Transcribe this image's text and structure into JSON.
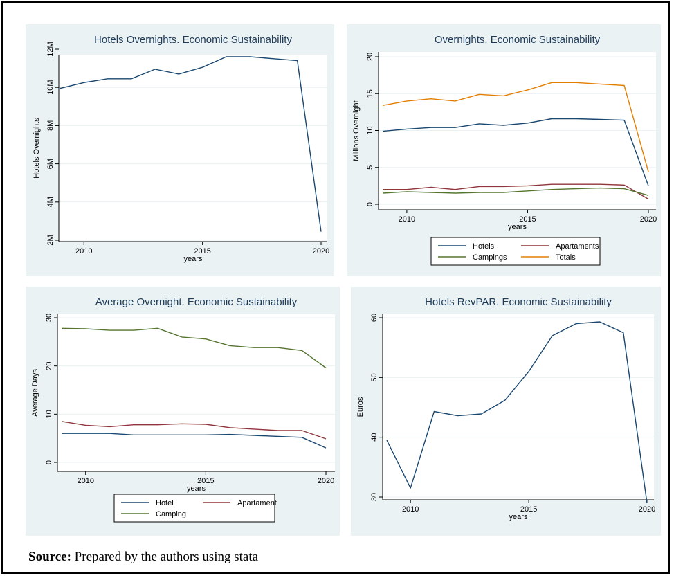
{
  "source": {
    "label": "Source:",
    "text": "Prepared by the authors using stata"
  },
  "chart_data": [
    {
      "id": "hotels-overnights",
      "type": "line",
      "title": "Hotels Overnights. Economic Sustainability",
      "xlabel": "years",
      "ylabel": "Hotels Overnights",
      "xlim": [
        2009,
        2020
      ],
      "ylim": [
        2000000,
        12000000
      ],
      "x_ticks": [
        2010,
        2015,
        2020
      ],
      "y_ticks": [
        {
          "v": 2000000,
          "label": "2M"
        },
        {
          "v": 4000000,
          "label": "4M"
        },
        {
          "v": 6000000,
          "label": "6M"
        },
        {
          "v": 8000000,
          "label": "8M"
        },
        {
          "v": 10000000,
          "label": "10M"
        },
        {
          "v": 12000000,
          "label": "12M"
        }
      ],
      "grid": true,
      "x": [
        2009,
        2010,
        2011,
        2012,
        2013,
        2014,
        2015,
        2016,
        2017,
        2018,
        2019,
        2020
      ],
      "series": [
        {
          "color": "#1a476f",
          "values": [
            9950000,
            10250000,
            10450000,
            10450000,
            10950000,
            10700000,
            11050000,
            11600000,
            11600000,
            11500000,
            11400000,
            2450000
          ]
        }
      ]
    },
    {
      "id": "overnights",
      "type": "line",
      "title": "Overnights. Economic Sustainability",
      "xlabel": "years",
      "ylabel": "Millions Overnight",
      "xlim": [
        2009,
        2020
      ],
      "ylim": [
        0,
        20
      ],
      "x_ticks": [
        2010,
        2015,
        2020
      ],
      "y_ticks": [
        {
          "v": 0,
          "label": "0"
        },
        {
          "v": 5,
          "label": "5"
        },
        {
          "v": 10,
          "label": "10"
        },
        {
          "v": 15,
          "label": "15"
        },
        {
          "v": 20,
          "label": "20"
        }
      ],
      "grid": true,
      "legend_position": "bottom",
      "x": [
        2009,
        2010,
        2011,
        2012,
        2013,
        2014,
        2015,
        2016,
        2017,
        2018,
        2019,
        2020
      ],
      "series": [
        {
          "name": "Hotels",
          "color": "#1a476f",
          "values": [
            9.9,
            10.2,
            10.4,
            10.4,
            10.9,
            10.7,
            11.0,
            11.6,
            11.6,
            11.5,
            11.4,
            2.5
          ]
        },
        {
          "name": "Apartaments",
          "color": "#90353b",
          "values": [
            2.0,
            2.0,
            2.3,
            2.0,
            2.4,
            2.4,
            2.5,
            2.7,
            2.7,
            2.7,
            2.6,
            0.7
          ]
        },
        {
          "name": "Campings",
          "color": "#55752f",
          "values": [
            1.5,
            1.7,
            1.6,
            1.5,
            1.6,
            1.6,
            1.8,
            2.0,
            2.1,
            2.2,
            2.1,
            1.2
          ]
        },
        {
          "name": "Totals",
          "color": "#e37e00",
          "values": [
            13.4,
            14.0,
            14.3,
            14.0,
            14.9,
            14.7,
            15.5,
            16.5,
            16.5,
            16.3,
            16.1,
            4.4
          ]
        }
      ]
    },
    {
      "id": "average-overnight",
      "type": "line",
      "title": "Average Overnight. Economic Sustainability",
      "xlabel": "years",
      "ylabel": "Average Days",
      "xlim": [
        2009,
        2020
      ],
      "ylim": [
        0,
        30
      ],
      "x_ticks": [
        2010,
        2015,
        2020
      ],
      "y_ticks": [
        {
          "v": 0,
          "label": "0"
        },
        {
          "v": 10,
          "label": "10"
        },
        {
          "v": 20,
          "label": "20"
        },
        {
          "v": 30,
          "label": "30"
        }
      ],
      "grid": true,
      "legend_position": "bottom",
      "x": [
        2009,
        2010,
        2011,
        2012,
        2013,
        2014,
        2015,
        2016,
        2017,
        2018,
        2019,
        2020
      ],
      "series": [
        {
          "name": "Hotel",
          "color": "#1a476f",
          "values": [
            6.0,
            6.0,
            6.0,
            5.7,
            5.7,
            5.7,
            5.7,
            5.8,
            5.6,
            5.4,
            5.2,
            3.0
          ]
        },
        {
          "name": "Apartament",
          "color": "#90353b",
          "values": [
            8.5,
            7.7,
            7.4,
            7.8,
            7.8,
            8.0,
            7.9,
            7.2,
            6.9,
            6.6,
            6.6,
            4.9
          ]
        },
        {
          "name": "Camping",
          "color": "#55752f",
          "values": [
            27.8,
            27.7,
            27.4,
            27.4,
            27.8,
            26.0,
            25.6,
            24.2,
            23.8,
            23.8,
            23.2,
            19.6
          ]
        }
      ]
    },
    {
      "id": "hotels-revpar",
      "type": "line",
      "title": "Hotels RevPAR. Economic Sustainability",
      "xlabel": "years",
      "ylabel": "Euros",
      "xlim": [
        2009,
        2020
      ],
      "ylim": [
        29,
        61
      ],
      "x_ticks": [
        2010,
        2015,
        2020
      ],
      "y_ticks": [
        {
          "v": 30,
          "label": "30"
        },
        {
          "v": 40,
          "label": "40"
        },
        {
          "v": 50,
          "label": "50"
        },
        {
          "v": 60,
          "label": "60"
        }
      ],
      "grid": true,
      "x": [
        2009,
        2010,
        2011,
        2012,
        2013,
        2014,
        2015,
        2016,
        2017,
        2018,
        2019,
        2020
      ],
      "series": [
        {
          "color": "#1a476f",
          "values": [
            39.5,
            31.5,
            44.3,
            43.6,
            43.9,
            46.2,
            51.0,
            57.0,
            59.0,
            59.3,
            57.5,
            29.0
          ]
        }
      ]
    }
  ]
}
